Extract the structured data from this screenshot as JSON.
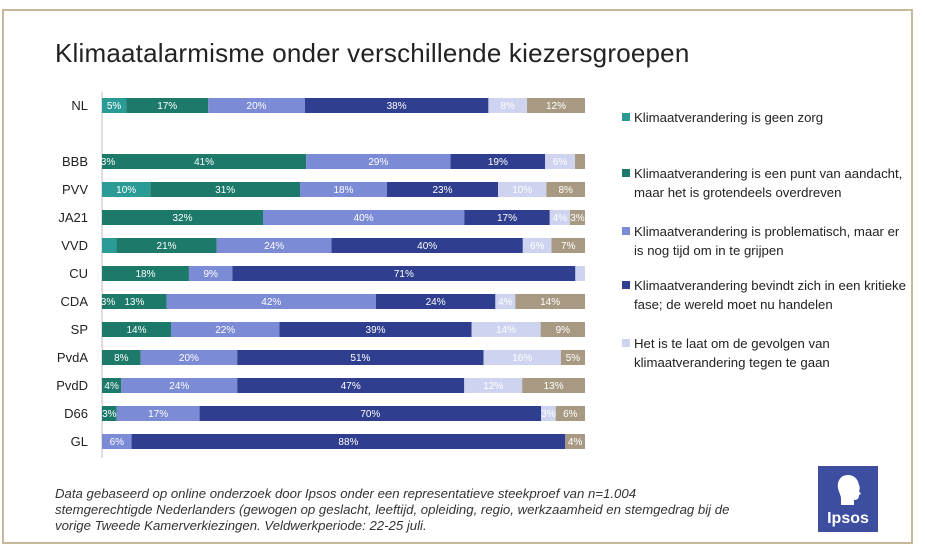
{
  "title": "Klimaatalarmisme onder verschillende kiezersgroepen",
  "footnote": "Data gebaseerd op online onderzoek door Ipsos onder een representatieve steekproef van n=1.004 stemgerechtigde Nederlanders (gewogen op geslacht, leeftijd, opleiding, regio, werkzaamheid en stemgedrag bij de vorige Tweede Kamerverkiezingen. Veldwerkperiode: 22-25 juli.",
  "logo": {
    "text": "Ipsos",
    "icon": "ipsos-head-icon"
  },
  "colors": {
    "geen_zorg": "#2b9b96",
    "overdreven": "#1d7a6a",
    "problematisch": "#7c8bd6",
    "kritiek": "#2f3e8f",
    "te_laat": "#ced4ef",
    "rest": "#a89a82"
  },
  "chart_data": {
    "type": "bar",
    "orientation": "horizontal",
    "stacked": true,
    "legend_position": "right",
    "categories": [
      "NL",
      "BBB",
      "PVV",
      "JA21",
      "VVD",
      "CU",
      "CDA",
      "SP",
      "PvdA",
      "PvdD",
      "D66",
      "GL"
    ],
    "series": [
      {
        "name": "Klimaatverandering is geen zorg",
        "color": "#2b9b96",
        "values": [
          5,
          0,
          10,
          0,
          3,
          0,
          0,
          0,
          0,
          0,
          0,
          0
        ],
        "labels": [
          "5%",
          "",
          "10%",
          "",
          "",
          "",
          "",
          "",
          "",
          "",
          "",
          ""
        ]
      },
      {
        "name": "Klimaatverandering is een punt van aandacht, maar het is grotendeels overdreven",
        "color": "#1d7a6a",
        "values": [
          17,
          41,
          31,
          32,
          21,
          18,
          13,
          14,
          8,
          4,
          3,
          0
        ],
        "labels": [
          "17%",
          "41%",
          "31%",
          "32%",
          "21%",
          "18%",
          "13%",
          "14%",
          "8%",
          "4%",
          "3%",
          ""
        ]
      },
      {
        "name": "Klimaatverandering is problematisch, maar er is nog tijd om in te grijpen",
        "color": "#7c8bd6",
        "values": [
          20,
          29,
          18,
          40,
          24,
          9,
          42,
          22,
          20,
          24,
          17,
          6
        ],
        "labels": [
          "20%",
          "29%",
          "18%",
          "40%",
          "24%",
          "9%",
          "42%",
          "22%",
          "20%",
          "24%",
          "17%",
          "6%"
        ]
      },
      {
        "name": "Klimaatverandering bevindt zich in een kritieke fase; de wereld moet nu handelen",
        "color": "#2f3e8f",
        "values": [
          38,
          19,
          23,
          17,
          40,
          71,
          24,
          39,
          51,
          47,
          70,
          88
        ],
        "labels": [
          "38%",
          "19%",
          "23%",
          "17%",
          "40%",
          "71%",
          "24%",
          "39%",
          "51%",
          "47%",
          "70%",
          "88%"
        ]
      },
      {
        "name": "Het is te laat om de gevolgen van klimaatverandering tegen te gaan",
        "color": "#ced4ef",
        "values": [
          8,
          6,
          10,
          4,
          6,
          2,
          4,
          14,
          16,
          12,
          3,
          0
        ],
        "labels": [
          "8%",
          "6%",
          "10%",
          "4%",
          "6%",
          "",
          "4%",
          "14%",
          "16%",
          "12%",
          "3%",
          ""
        ]
      },
      {
        "color": "#a89a82",
        "values": [
          12,
          2,
          8,
          3,
          7,
          0,
          14,
          9,
          5,
          13,
          6,
          4
        ],
        "labels": [
          "12%",
          "",
          "8%",
          "3%",
          "7%",
          "",
          "14%",
          "9%",
          "5%",
          "13%",
          "6%",
          "4%"
        ]
      }
    ],
    "extra_labels": [
      {
        "category": "BBB",
        "text": "3%"
      },
      {
        "category": "CDA",
        "text": "3%"
      }
    ],
    "xlim": [
      0,
      100
    ]
  },
  "legend": [
    {
      "label": "Klimaatverandering is geen zorg",
      "color": "#2b9b96"
    },
    {
      "label": "Klimaatverandering is een punt van aandacht, maar het is grotendeels overdreven",
      "color": "#1d7a6a"
    },
    {
      "label": "Klimaatverandering is problematisch, maar er is nog tijd om in te grijpen",
      "color": "#7c8bd6"
    },
    {
      "label": "Klimaatverandering bevindt zich in een kritieke fase; de wereld moet nu handelen",
      "color": "#2f3e8f"
    },
    {
      "label": "Het is te laat om de gevolgen van klimaatverandering tegen te gaan",
      "color": "#ced4ef"
    }
  ]
}
